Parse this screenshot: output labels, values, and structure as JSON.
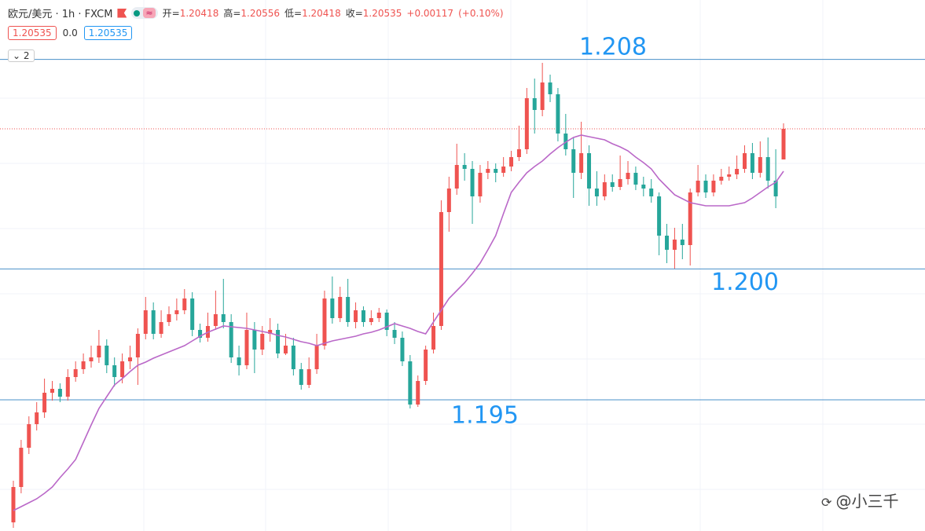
{
  "chart_data": {
    "type": "candlestick",
    "symbol": "欧元/美元 · 1h · FXCM",
    "ohlc_labels": [
      "开=",
      "高=",
      "低=",
      "收="
    ],
    "change": {
      "value": 0.00117,
      "label": "+0.00117"
    },
    "change_pct": {
      "value": 0.1,
      "label": "(+0.10%)"
    },
    "spread": {
      "value": 0,
      "label": "0.0"
    },
    "indicator_count": 2,
    "watermark": "@小三千",
    "up_color": "#ef5350",
    "down_color": "#26a69a",
    "ylim": [
      1.18999,
      1.21027
    ],
    "levels": [
      1.208,
      {
        "value": 1.2,
        "label": "1.200"
      },
      1.195
    ],
    "level_color": "#4a90c8",
    "level_label_color": "#2196f3",
    "open": [
      1.19032,
      1.19167,
      1.19317,
      1.19407,
      1.19452,
      1.19527,
      1.19542,
      1.19512,
      1.19587,
      1.19617,
      1.19647,
      1.19662,
      1.19707,
      1.19632,
      1.19587,
      1.19647,
      1.19662,
      1.19752,
      1.19842,
      1.19752,
      1.19797,
      1.19827,
      1.19842,
      1.19887,
      1.19767,
      1.19737,
      1.19782,
      1.19827,
      1.19797,
      1.19662,
      1.19632,
      1.19767,
      1.19692,
      1.19752,
      1.19767,
      1.19677,
      1.19707,
      1.19617,
      1.19557,
      1.19617,
      1.19707,
      1.19887,
      1.19812,
      1.19893,
      1.19797,
      1.19842,
      1.19797,
      1.19812,
      1.19833,
      1.19767,
      1.19737,
      1.19647,
      1.19482,
      1.19572,
      1.19692,
      1.19782,
      1.20217,
      1.20307,
      1.20397,
      1.20382,
      1.20277,
      1.20367,
      1.20382,
      1.20367,
      1.20391,
      1.20427,
      1.20457,
      1.20652,
      1.20607,
      1.20712,
      1.20667,
      1.20517,
      1.20457,
      1.20367,
      1.20442,
      1.20307,
      1.20277,
      1.20331,
      1.20313,
      1.20343,
      1.20367,
      1.20322,
      1.20307,
      1.20277,
      1.20127,
      1.20073,
      1.20112,
      1.20091,
      1.20292,
      1.20337,
      1.20292,
      1.20337,
      1.20352,
      1.20361,
      1.20382,
      1.20442,
      1.20367,
      1.20427,
      1.20337,
      1.20418
    ],
    "high": [
      1.19191,
      1.19347,
      1.19437,
      1.19491,
      1.19581,
      1.19572,
      1.19563,
      1.19617,
      1.19647,
      1.19677,
      1.19707,
      1.19767,
      1.19731,
      1.19662,
      1.19677,
      1.19707,
      1.19773,
      1.19893,
      1.19872,
      1.19842,
      1.19857,
      1.19887,
      1.19923,
      1.19911,
      1.19791,
      1.19833,
      1.19917,
      1.19962,
      1.19827,
      1.19707,
      1.19833,
      1.19797,
      1.19782,
      1.19812,
      1.19791,
      1.19752,
      1.19737,
      1.19641,
      1.19662,
      1.19752,
      1.19917,
      1.19971,
      1.19932,
      1.19962,
      1.19872,
      1.19857,
      1.19842,
      1.19851,
      1.19845,
      1.19797,
      1.19761,
      1.19671,
      1.19593,
      1.19707,
      1.19833,
      1.20262,
      1.20352,
      1.20478,
      1.20442,
      1.20412,
      1.20397,
      1.20412,
      1.20403,
      1.20427,
      1.20451,
      1.20547,
      1.20691,
      1.20727,
      1.20787,
      1.20742,
      1.20691,
      1.20592,
      1.20502,
      1.20562,
      1.20472,
      1.20373,
      1.20361,
      1.20361,
      1.20433,
      1.20412,
      1.20391,
      1.20352,
      1.20343,
      1.20292,
      1.20172,
      1.20157,
      1.20172,
      1.20307,
      1.20397,
      1.20361,
      1.20361,
      1.20382,
      1.20391,
      1.20433,
      1.20472,
      1.20481,
      1.20487,
      1.20502,
      1.20457,
      1.20556
    ],
    "low": [
      1.19011,
      1.19143,
      1.19293,
      1.19383,
      1.19431,
      1.19497,
      1.19491,
      1.19497,
      1.19569,
      1.19599,
      1.19623,
      1.19641,
      1.19602,
      1.19551,
      1.19563,
      1.19617,
      1.19557,
      1.19731,
      1.19731,
      1.19737,
      1.19782,
      1.19803,
      1.19827,
      1.19743,
      1.19719,
      1.19722,
      1.19767,
      1.19773,
      1.19641,
      1.19593,
      1.19617,
      1.19602,
      1.19671,
      1.19722,
      1.19659,
      1.19671,
      1.19593,
      1.19539,
      1.19545,
      1.19599,
      1.19692,
      1.19791,
      1.19797,
      1.19779,
      1.19773,
      1.19779,
      1.19785,
      1.19797,
      1.19743,
      1.19713,
      1.19629,
      1.19467,
      1.19473,
      1.19557,
      1.19677,
      1.19767,
      1.20142,
      1.20283,
      1.20337,
      1.20172,
      1.20253,
      1.20343,
      1.20331,
      1.20352,
      1.20373,
      1.20412,
      1.20439,
      1.20517,
      1.20583,
      1.20637,
      1.20487,
      1.20433,
      1.20271,
      1.20343,
      1.20241,
      1.20241,
      1.20262,
      1.20295,
      1.20301,
      1.20322,
      1.20301,
      1.20277,
      1.20253,
      1.20052,
      1.20022,
      1.20001,
      1.20037,
      1.20013,
      1.20277,
      1.20271,
      1.20277,
      1.20322,
      1.20337,
      1.20343,
      1.20367,
      1.20343,
      1.20349,
      1.20307,
      1.20232,
      1.20418
    ],
    "close": [
      1.19167,
      1.19317,
      1.19407,
      1.19452,
      1.19527,
      1.19542,
      1.19512,
      1.19587,
      1.19617,
      1.19647,
      1.19662,
      1.19707,
      1.19632,
      1.19587,
      1.19647,
      1.19662,
      1.19752,
      1.19842,
      1.19752,
      1.19797,
      1.19827,
      1.19842,
      1.19887,
      1.19767,
      1.19737,
      1.19782,
      1.19827,
      1.19797,
      1.19662,
      1.19632,
      1.19767,
      1.19692,
      1.19752,
      1.19767,
      1.19677,
      1.19707,
      1.19617,
      1.19557,
      1.19617,
      1.19707,
      1.19887,
      1.19812,
      1.19893,
      1.19797,
      1.19842,
      1.19797,
      1.19812,
      1.19833,
      1.19767,
      1.19737,
      1.19647,
      1.19482,
      1.19572,
      1.19692,
      1.19782,
      1.20217,
      1.20307,
      1.20397,
      1.20382,
      1.20277,
      1.20367,
      1.20382,
      1.20367,
      1.20391,
      1.20427,
      1.20457,
      1.20652,
      1.20607,
      1.20712,
      1.20667,
      1.20517,
      1.20457,
      1.20367,
      1.20442,
      1.20307,
      1.20277,
      1.20331,
      1.20313,
      1.20343,
      1.20367,
      1.20322,
      1.20307,
      1.20277,
      1.20127,
      1.20073,
      1.20112,
      1.20091,
      1.20292,
      1.20337,
      1.20292,
      1.20337,
      1.20352,
      1.20361,
      1.20382,
      1.20442,
      1.20367,
      1.20427,
      1.20337,
      1.20277,
      1.20535
    ],
    "ma": {
      "color": "#ba68c8",
      "values": [
        1.19077,
        1.19092,
        1.19107,
        1.19122,
        1.19143,
        1.19167,
        1.19203,
        1.19236,
        1.19272,
        1.19338,
        1.19404,
        1.19467,
        1.19512,
        1.19557,
        1.19581,
        1.19608,
        1.19632,
        1.19644,
        1.19659,
        1.19671,
        1.19683,
        1.19695,
        1.19707,
        1.19725,
        1.19743,
        1.19758,
        1.1977,
        1.19782,
        1.19779,
        1.19776,
        1.19773,
        1.19767,
        1.19761,
        1.19755,
        1.19746,
        1.1974,
        1.19731,
        1.19722,
        1.19716,
        1.19707,
        1.19716,
        1.19725,
        1.19731,
        1.19737,
        1.19743,
        1.19752,
        1.19758,
        1.19767,
        1.19779,
        1.19791,
        1.19782,
        1.19773,
        1.19761,
        1.19752,
        1.19797,
        1.19842,
        1.19887,
        1.19917,
        1.19947,
        1.19983,
        1.20022,
        1.20073,
        1.20127,
        1.20211,
        1.20292,
        1.20331,
        1.20367,
        1.20391,
        1.20412,
        1.20439,
        1.20463,
        1.20484,
        1.20502,
        1.20511,
        1.20505,
        1.20499,
        1.20493,
        1.20478,
        1.20466,
        1.20451,
        1.20427,
        1.20406,
        1.20382,
        1.20343,
        1.20313,
        1.20283,
        1.20268,
        1.20253,
        1.20247,
        1.20241,
        1.20241,
        1.20241,
        1.20241,
        1.20247,
        1.20253,
        1.20271,
        1.20292,
        1.20313,
        1.20331,
        1.20373
      ]
    }
  }
}
